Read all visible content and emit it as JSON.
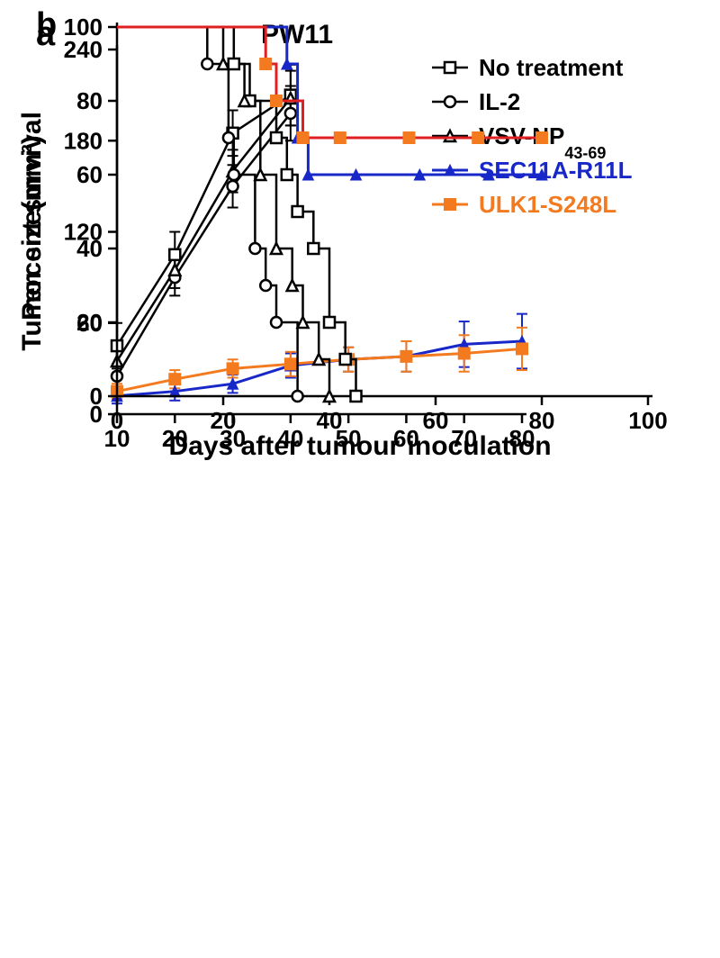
{
  "panelA": {
    "letter": "a",
    "title": "PW11",
    "type": "line-errorbar",
    "xlim": [
      10,
      80
    ],
    "ylim": [
      0,
      240
    ],
    "xticks": [
      10,
      20,
      30,
      40,
      50,
      60,
      70,
      80
    ],
    "yticks": [
      0,
      60,
      120,
      180,
      240
    ],
    "ylabel": "Tumor size(mm²)",
    "xlabel": "",
    "axis_linewidth": 2.5,
    "axis_color": "#000000",
    "tick_fontsize": 26,
    "label_fontsize": 30,
    "title_fontsize": 30,
    "letter_fontsize": 38,
    "letter_weight": "bold",
    "background_color": "#ffffff",
    "series": [
      {
        "name": "No treatment",
        "legend": "No treatment",
        "color": "#000000",
        "linewidth": 2.5,
        "marker": "square-open",
        "marker_size": 12,
        "x": [
          10,
          20,
          30,
          40
        ],
        "y": [
          45,
          105,
          185,
          210
        ],
        "err": [
          15,
          15,
          15,
          20
        ]
      },
      {
        "name": "IL-2",
        "legend": "IL-2",
        "color": "#000000",
        "linewidth": 2.5,
        "marker": "circle-open",
        "marker_size": 12,
        "x": [
          10,
          20,
          30,
          40
        ],
        "y": [
          25,
          90,
          150,
          198
        ],
        "err": [
          8,
          12,
          14,
          18
        ]
      },
      {
        "name": "VSV-NP43-69",
        "legend": "VSV-NP",
        "legend_sub": "43-69",
        "color": "#000000",
        "linewidth": 2.5,
        "marker": "triangle-open",
        "marker_size": 12,
        "x": [
          10,
          20,
          30,
          40
        ],
        "y": [
          35,
          95,
          160,
          208
        ],
        "err": [
          10,
          12,
          14,
          18
        ]
      },
      {
        "name": "SEC11A-R11L",
        "legend": "SEC11A-R11L",
        "color": "#1828c8",
        "linewidth": 3,
        "marker": "triangle-filled",
        "marker_size": 12,
        "x": [
          10,
          20,
          30,
          40,
          50,
          60,
          70,
          80
        ],
        "y": [
          12,
          15,
          20,
          32,
          36,
          38,
          46,
          48
        ],
        "err": [
          5,
          6,
          6,
          8,
          8,
          10,
          15,
          18
        ]
      },
      {
        "name": "ULK1-S248L",
        "legend": "ULK1-S248L",
        "color": "#f47a1f",
        "linewidth": 3,
        "marker": "square-filled",
        "marker_size": 13,
        "x": [
          10,
          20,
          30,
          40,
          50,
          60,
          70,
          80
        ],
        "y": [
          15,
          23,
          30,
          33,
          36,
          38,
          40,
          43
        ],
        "err": [
          5,
          6,
          6,
          8,
          8,
          10,
          12,
          14
        ]
      }
    ]
  },
  "panelB": {
    "letter": "b",
    "type": "kaplan-meier",
    "xlim": [
      0,
      100
    ],
    "ylim": [
      0,
      100
    ],
    "xticks": [
      0,
      20,
      40,
      60,
      80,
      100
    ],
    "yticks": [
      0,
      20,
      40,
      60,
      80,
      100
    ],
    "xlabel": "Days after tumour inoculation",
    "ylabel": "Percent survival",
    "axis_linewidth": 2.5,
    "axis_color": "#000000",
    "tick_fontsize": 26,
    "label_fontsize": 30,
    "letter_fontsize": 38,
    "letter_weight": "bold",
    "background_color": "#ffffff",
    "series": [
      {
        "name": "No treatment",
        "color": "#000000",
        "linewidth": 2.5,
        "marker": "square-open",
        "marker_size": 12,
        "steps": [
          [
            0,
            100
          ],
          [
            22,
            100
          ],
          [
            22,
            90
          ],
          [
            25,
            90
          ],
          [
            25,
            80
          ],
          [
            30,
            80
          ],
          [
            30,
            70
          ],
          [
            32,
            70
          ],
          [
            32,
            60
          ],
          [
            34,
            60
          ],
          [
            34,
            50
          ],
          [
            37,
            50
          ],
          [
            37,
            40
          ],
          [
            40,
            40
          ],
          [
            40,
            20
          ],
          [
            43,
            20
          ],
          [
            43,
            10
          ],
          [
            45,
            10
          ],
          [
            45,
            0
          ]
        ],
        "censor_x": []
      },
      {
        "name": "IL-2",
        "color": "#000000",
        "linewidth": 2.5,
        "marker": "circle-open",
        "marker_size": 12,
        "steps": [
          [
            0,
            100
          ],
          [
            17,
            100
          ],
          [
            17,
            90
          ],
          [
            21,
            90
          ],
          [
            21,
            70
          ],
          [
            22,
            70
          ],
          [
            22,
            60
          ],
          [
            26,
            60
          ],
          [
            26,
            40
          ],
          [
            28,
            40
          ],
          [
            28,
            30
          ],
          [
            30,
            30
          ],
          [
            30,
            20
          ],
          [
            34,
            20
          ],
          [
            34,
            0
          ]
        ],
        "censor_x": []
      },
      {
        "name": "VSV-NP43-69",
        "color": "#000000",
        "linewidth": 2.5,
        "marker": "triangle-open",
        "marker_size": 12,
        "steps": [
          [
            0,
            100
          ],
          [
            20,
            100
          ],
          [
            20,
            90
          ],
          [
            24,
            90
          ],
          [
            24,
            80
          ],
          [
            27,
            80
          ],
          [
            27,
            60
          ],
          [
            30,
            60
          ],
          [
            30,
            40
          ],
          [
            33,
            40
          ],
          [
            33,
            30
          ],
          [
            35,
            30
          ],
          [
            35,
            20
          ],
          [
            38,
            20
          ],
          [
            38,
            10
          ],
          [
            40,
            10
          ],
          [
            40,
            0
          ]
        ],
        "censor_x": []
      },
      {
        "name": "SEC11A-R11L",
        "color": "#1828c8",
        "linewidth": 3,
        "marker": "triangle-filled",
        "marker_size": 12,
        "steps": [
          [
            0,
            100
          ],
          [
            32,
            100
          ],
          [
            32,
            90
          ],
          [
            34,
            90
          ],
          [
            34,
            70
          ],
          [
            36,
            70
          ],
          [
            36,
            60
          ],
          [
            80,
            60
          ]
        ],
        "censor_x": [
          45,
          57,
          70,
          80
        ]
      },
      {
        "name": "ULK1-S248L",
        "line_color": "#e02020",
        "color": "#f47a1f",
        "linewidth": 3,
        "marker": "square-filled",
        "marker_size": 13,
        "steps": [
          [
            0,
            100
          ],
          [
            28,
            100
          ],
          [
            28,
            90
          ],
          [
            30,
            90
          ],
          [
            30,
            80
          ],
          [
            35,
            80
          ],
          [
            35,
            70
          ],
          [
            80,
            70
          ]
        ],
        "censor_x": [
          42,
          55,
          68,
          80
        ]
      }
    ]
  }
}
